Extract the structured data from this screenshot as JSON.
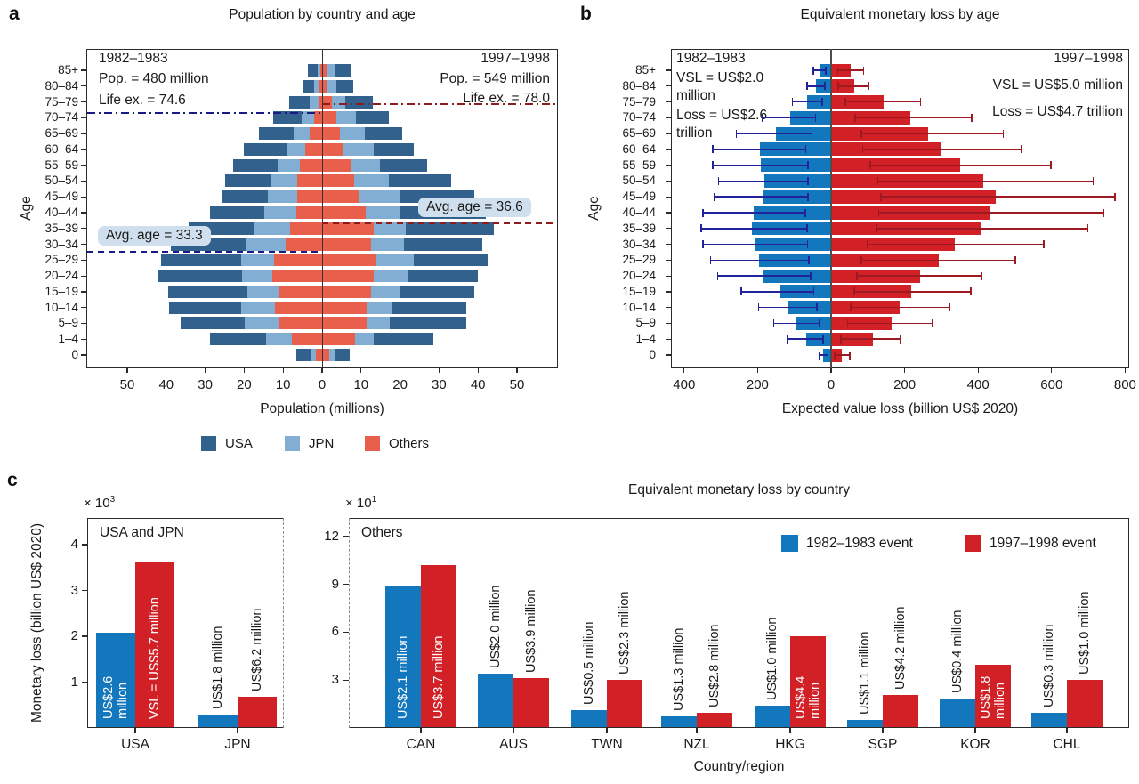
{
  "colors": {
    "usa_dark_blue": "#31618c",
    "jpn_light_blue": "#82aed3",
    "others_salmon": "#e8604c",
    "event1_blue": "#1377bd",
    "event2_red": "#d22027",
    "whisker_navy": "#22229a",
    "whisker_dark_red": "#9e1a22",
    "line_navy": "#1a1a85",
    "line_dark_red": "#8f1b1b",
    "avg_label_bg": "#cfdfed",
    "axis": "#2a2a2a"
  },
  "panel_letters": {
    "a": "a",
    "b": "b",
    "c": "c"
  },
  "chart_data": [
    {
      "id": "a",
      "type": "bar",
      "variant": "population-pyramid-stacked",
      "title": "Population by country and age",
      "xlabel": "Population (millions)",
      "ylabel": "Age",
      "age_groups": [
        "0",
        "1–4",
        "5–9",
        "10–14",
        "15–19",
        "20–24",
        "25–29",
        "30–34",
        "35–39",
        "40–44",
        "45–49",
        "50–54",
        "55–59",
        "60–64",
        "65–69",
        "70–74",
        "75–79",
        "80–84",
        "85+"
      ],
      "x_ticks": [
        {
          "label": "50",
          "value": -50
        },
        {
          "label": "40",
          "value": -40
        },
        {
          "label": "30",
          "value": -30
        },
        {
          "label": "20",
          "value": -20
        },
        {
          "label": "10",
          "value": -10
        },
        {
          "label": "0",
          "value": 0
        },
        {
          "label": "10",
          "value": 10
        },
        {
          "label": "20",
          "value": 20
        },
        {
          "label": "30",
          "value": 30
        },
        {
          "label": "40",
          "value": 40
        },
        {
          "label": "50",
          "value": 50
        }
      ],
      "legend": [
        {
          "label": "USA",
          "color_key": "usa_dark_blue"
        },
        {
          "label": "JPN",
          "color_key": "jpn_light_blue"
        },
        {
          "label": "Others",
          "color_key": "others_salmon"
        }
      ],
      "stack_order_from_center": [
        "Others",
        "JPN",
        "USA"
      ],
      "left": {
        "period": "1982–1983",
        "pop_label": "Pop. = 480 million",
        "life_ex_label": "Life ex. = 74.6",
        "life_ex": 74.6,
        "avg_age_label": "Avg. age = 33.3",
        "avg_age": 33.3,
        "USA": [
          3.6,
          14.4,
          16.6,
          18.4,
          20.3,
          21.6,
          20.7,
          19.3,
          16.8,
          14.0,
          11.7,
          11.6,
          11.4,
          10.8,
          9.0,
          7.3,
          5.2,
          3.1,
          2.4
        ],
        "JPN": [
          1.5,
          6.6,
          8.9,
          8.6,
          8.0,
          7.9,
          8.4,
          10.2,
          9.2,
          8.2,
          7.5,
          6.8,
          5.9,
          4.8,
          3.9,
          3.2,
          2.2,
          1.3,
          0.7
        ],
        "Others": [
          1.5,
          7.8,
          10.9,
          12.2,
          11.1,
          12.7,
          12.3,
          9.4,
          8.3,
          6.6,
          6.5,
          6.4,
          5.6,
          4.4,
          3.3,
          2.1,
          1.0,
          0.7,
          0.5
        ]
      },
      "right": {
        "period": "1997–1998",
        "pop_label": "Pop. = 549 million",
        "life_ex_label": "Life ex. = 78.0",
        "life_ex": 78.0,
        "avg_age_label": "Avg. age = 36.6",
        "avg_age": 36.6,
        "USA": [
          3.9,
          15.3,
          19.6,
          19.1,
          19.2,
          17.9,
          19.0,
          20.0,
          22.6,
          22.0,
          19.1,
          15.9,
          12.1,
          10.2,
          9.6,
          8.5,
          7.0,
          4.4,
          4.0
        ],
        "JPN": [
          1.2,
          4.9,
          6.0,
          6.5,
          7.3,
          8.8,
          9.8,
          8.5,
          8.1,
          8.9,
          10.4,
          8.9,
          7.6,
          7.8,
          6.3,
          5.1,
          3.4,
          2.3,
          2.0
        ],
        "Others": [
          1.9,
          8.4,
          11.4,
          11.4,
          12.5,
          13.3,
          13.7,
          12.5,
          13.3,
          11.1,
          9.5,
          8.2,
          7.3,
          5.5,
          4.6,
          3.6,
          2.6,
          1.4,
          1.2
        ]
      }
    },
    {
      "id": "b",
      "type": "bar",
      "variant": "diverging-bars-with-error",
      "title": "Equivalent monetary loss by age",
      "xlabel": "Expected value loss (billion US$ 2020)",
      "ylabel": "Age",
      "age_groups": [
        "0",
        "1–4",
        "5–9",
        "10–14",
        "15–19",
        "20–24",
        "25–29",
        "30–34",
        "35–39",
        "40–44",
        "45–49",
        "50–54",
        "55–59",
        "60–64",
        "65–69",
        "70–74",
        "75–79",
        "80–84",
        "85+"
      ],
      "x_ticks": [
        {
          "label": "400",
          "value": -400
        },
        {
          "label": "200",
          "value": -200
        },
        {
          "label": "0",
          "value": 0
        },
        {
          "label": "200",
          "value": 200
        },
        {
          "label": "400",
          "value": 400
        },
        {
          "label": "600",
          "value": 600
        },
        {
          "label": "800",
          "value": 800
        }
      ],
      "left": {
        "period": "1982–1983",
        "vsl_lines": [
          "VSL = US$2.0",
          "million"
        ],
        "loss_lines": [
          "Loss = US$2.6",
          "trillion"
        ],
        "values": [
          22,
          67,
          94,
          116,
          141,
          183,
          195,
          207,
          215,
          210,
          184,
          182,
          192,
          194,
          151,
          112,
          66,
          40,
          28
        ],
        "ci_low": [
          7,
          20,
          30,
          37,
          45,
          54,
          59,
          62,
          64,
          68,
          61,
          61,
          61,
          67,
          50,
          40,
          22,
          15,
          12
        ],
        "ci_high": [
          34,
          121,
          158,
          199,
          246,
          311,
          330,
          350,
          355,
          351,
          319,
          308,
          324,
          324,
          260,
          190,
          107,
          68,
          50
        ]
      },
      "right": {
        "period": "1997–1998",
        "vsl_label": "VSL = US$5.0 million",
        "loss_label": "Loss = US$4.7 trillion",
        "values": [
          28,
          113,
          165,
          187,
          217,
          242,
          292,
          337,
          409,
          433,
          448,
          415,
          352,
          300,
          265,
          216,
          144,
          62,
          53
        ],
        "ci_low": [
          8,
          25,
          43,
          51,
          61,
          68,
          81,
          98,
          121,
          128,
          133,
          125,
          105,
          84,
          81,
          63,
          37,
          18,
          16
        ],
        "ci_high": [
          53,
          191,
          277,
          324,
          382,
          412,
          503,
          581,
          700,
          743,
          775,
          715,
          600,
          520,
          470,
          385,
          245,
          105,
          90
        ]
      }
    },
    {
      "id": "c",
      "type": "bar",
      "variant": "grouped",
      "title": "Equivalent monetary loss by country",
      "ylabel": "Monetary loss (billion US$ 2020)",
      "xlabel": "Country/region",
      "legend": [
        {
          "label": "1982–1983 event",
          "color_key": "event1_blue"
        },
        {
          "label": "1997–1998 event",
          "color_key": "event2_red"
        }
      ],
      "left_panel": {
        "inner_label": "USA and JPN",
        "scale_base": "× 10",
        "scale_exp": "3",
        "y_ticks": [
          1,
          2,
          3,
          4
        ],
        "categories": [
          "USA",
          "JPN"
        ],
        "series": [
          {
            "name": "1982–1983 event",
            "color_key": "event1_blue",
            "values": [
              2.07,
              0.3
            ],
            "vsl_labels": [
              {
                "lines": [
                  "US$2.6",
                  "million"
                ],
                "placement": "inside"
              },
              {
                "lines": [
                  "US$1.8 million"
                ],
                "placement": "above"
              }
            ]
          },
          {
            "name": "1997–1998 event",
            "color_key": "event2_red",
            "values": [
              3.63,
              0.67
            ],
            "vsl_labels": [
              {
                "lines": [
                  "VSL = US$5.7 million"
                ],
                "placement": "inside"
              },
              {
                "lines": [
                  "US$6.2 million"
                ],
                "placement": "above"
              }
            ]
          }
        ]
      },
      "right_panel": {
        "inner_label": "Others",
        "scale_base": "× 10",
        "scale_exp": "1",
        "y_ticks": [
          3,
          6,
          9,
          12
        ],
        "categories": [
          "CAN",
          "AUS",
          "TWN",
          "NZL",
          "HKG",
          "SGP",
          "KOR",
          "CHL"
        ],
        "series": [
          {
            "name": "1982–1983 event",
            "color_key": "event1_blue",
            "values": [
              8.9,
              3.4,
              1.1,
              0.75,
              1.4,
              0.5,
              1.85,
              0.95
            ],
            "vsl_labels": [
              {
                "lines": [
                  "US$2.1 million"
                ],
                "placement": "inside"
              },
              {
                "lines": [
                  "US$2.0 million"
                ],
                "placement": "above"
              },
              {
                "lines": [
                  "US$0.5 million"
                ],
                "placement": "above"
              },
              {
                "lines": [
                  "US$1.3 million"
                ],
                "placement": "above"
              },
              {
                "lines": [
                  "US$1.0 million"
                ],
                "placement": "above"
              },
              {
                "lines": [
                  "US$1.1 million"
                ],
                "placement": "above"
              },
              {
                "lines": [
                  "US$0.4 million"
                ],
                "placement": "above"
              },
              {
                "lines": [
                  "US$0.3 million"
                ],
                "placement": "above"
              }
            ]
          },
          {
            "name": "1997–1998 event",
            "color_key": "event2_red",
            "values": [
              10.2,
              3.1,
              3.0,
              0.95,
              5.75,
              2.05,
              3.95,
              3.0
            ],
            "vsl_labels": [
              {
                "lines": [
                  "US$3.7 million"
                ],
                "placement": "inside"
              },
              {
                "lines": [
                  "US$3.9 million"
                ],
                "placement": "above"
              },
              {
                "lines": [
                  "US$2.3 million"
                ],
                "placement": "above"
              },
              {
                "lines": [
                  "US$2.8 million"
                ],
                "placement": "above"
              },
              {
                "lines": [
                  "US$4.4",
                  "million"
                ],
                "placement": "inside"
              },
              {
                "lines": [
                  "US$4.2 million"
                ],
                "placement": "above"
              },
              {
                "lines": [
                  "US$1.8",
                  "million"
                ],
                "placement": "inside"
              },
              {
                "lines": [
                  "US$1.0 million"
                ],
                "placement": "above"
              }
            ]
          }
        ]
      }
    }
  ]
}
